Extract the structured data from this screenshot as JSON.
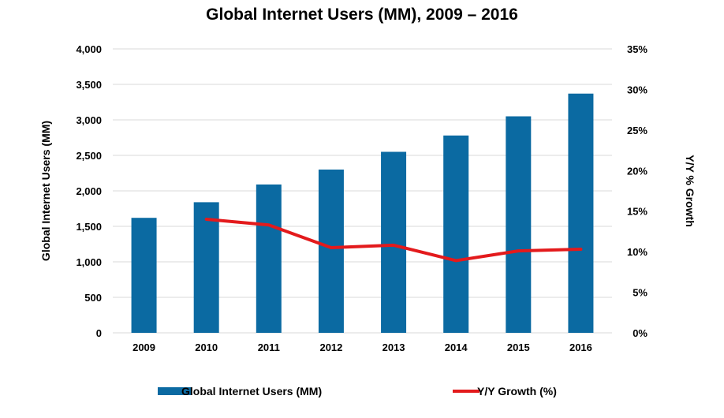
{
  "chart_data": {
    "type": "bar",
    "title": "Global Internet Users (MM), 2009 – 2016",
    "categories": [
      "2009",
      "2010",
      "2011",
      "2012",
      "2013",
      "2014",
      "2015",
      "2016"
    ],
    "series": [
      {
        "name": "Global Internet Users (MM)",
        "type": "bar",
        "axis": "left",
        "color": "#0b6aa2",
        "values": [
          1620,
          1840,
          2090,
          2300,
          2550,
          2780,
          3050,
          3370
        ]
      },
      {
        "name": "Y/Y Growth (%)",
        "type": "line",
        "axis": "right",
        "color": "#e31a1c",
        "values": [
          null,
          14.0,
          13.3,
          10.5,
          10.8,
          8.9,
          10.1,
          10.3
        ]
      }
    ],
    "ylabel": "Global Internet Users (MM)",
    "y2label": "Y/Y % Growth",
    "ylim": [
      0,
      4000
    ],
    "y2lim": [
      0,
      35
    ],
    "yticks": [
      "0",
      "500",
      "1,000",
      "1,500",
      "2,000",
      "2,500",
      "3,000",
      "3,500",
      "4,000"
    ],
    "y2ticks": [
      "0%",
      "5%",
      "10%",
      "15%",
      "20%",
      "25%",
      "30%",
      "35%"
    ],
    "grid": true,
    "legend": "bottom"
  }
}
